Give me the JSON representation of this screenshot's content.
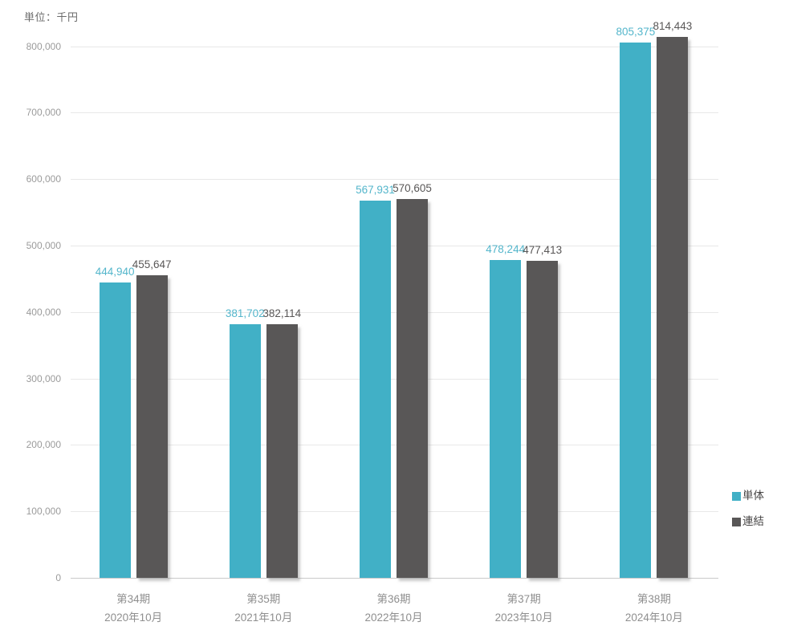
{
  "chart_data": {
    "type": "bar",
    "title": "",
    "unit_label": "単位：千円",
    "categories": [
      {
        "period": "第34期",
        "date": "2020年10月"
      },
      {
        "period": "第35期",
        "date": "2021年10月"
      },
      {
        "period": "第36期",
        "date": "2022年10月"
      },
      {
        "period": "第37期",
        "date": "2023年10月"
      },
      {
        "period": "第38期",
        "date": "2024年10月"
      }
    ],
    "series": [
      {
        "name": "単体",
        "color": "#41b0c6",
        "label_color": "#54b6cb",
        "values": [
          444940,
          381702,
          567931,
          478244,
          805375
        ],
        "value_labels": [
          "444,940",
          "381,702",
          "567,931",
          "478,244",
          "805,375"
        ]
      },
      {
        "name": "連結",
        "color": "#595757",
        "label_color": "#595757",
        "values": [
          455647,
          382114,
          570605,
          477413,
          814443
        ],
        "value_labels": [
          "455,647",
          "382,114",
          "570,605",
          "477,413",
          "814,443"
        ]
      }
    ],
    "y_axis": {
      "min": 0,
      "max": 800000,
      "tick_interval": 100000,
      "tick_labels": [
        "0",
        "100,000",
        "200,000",
        "300,000",
        "400,000",
        "500,000",
        "600,000",
        "700,000",
        "800,000"
      ]
    },
    "grid": true,
    "legend_position": "right"
  }
}
